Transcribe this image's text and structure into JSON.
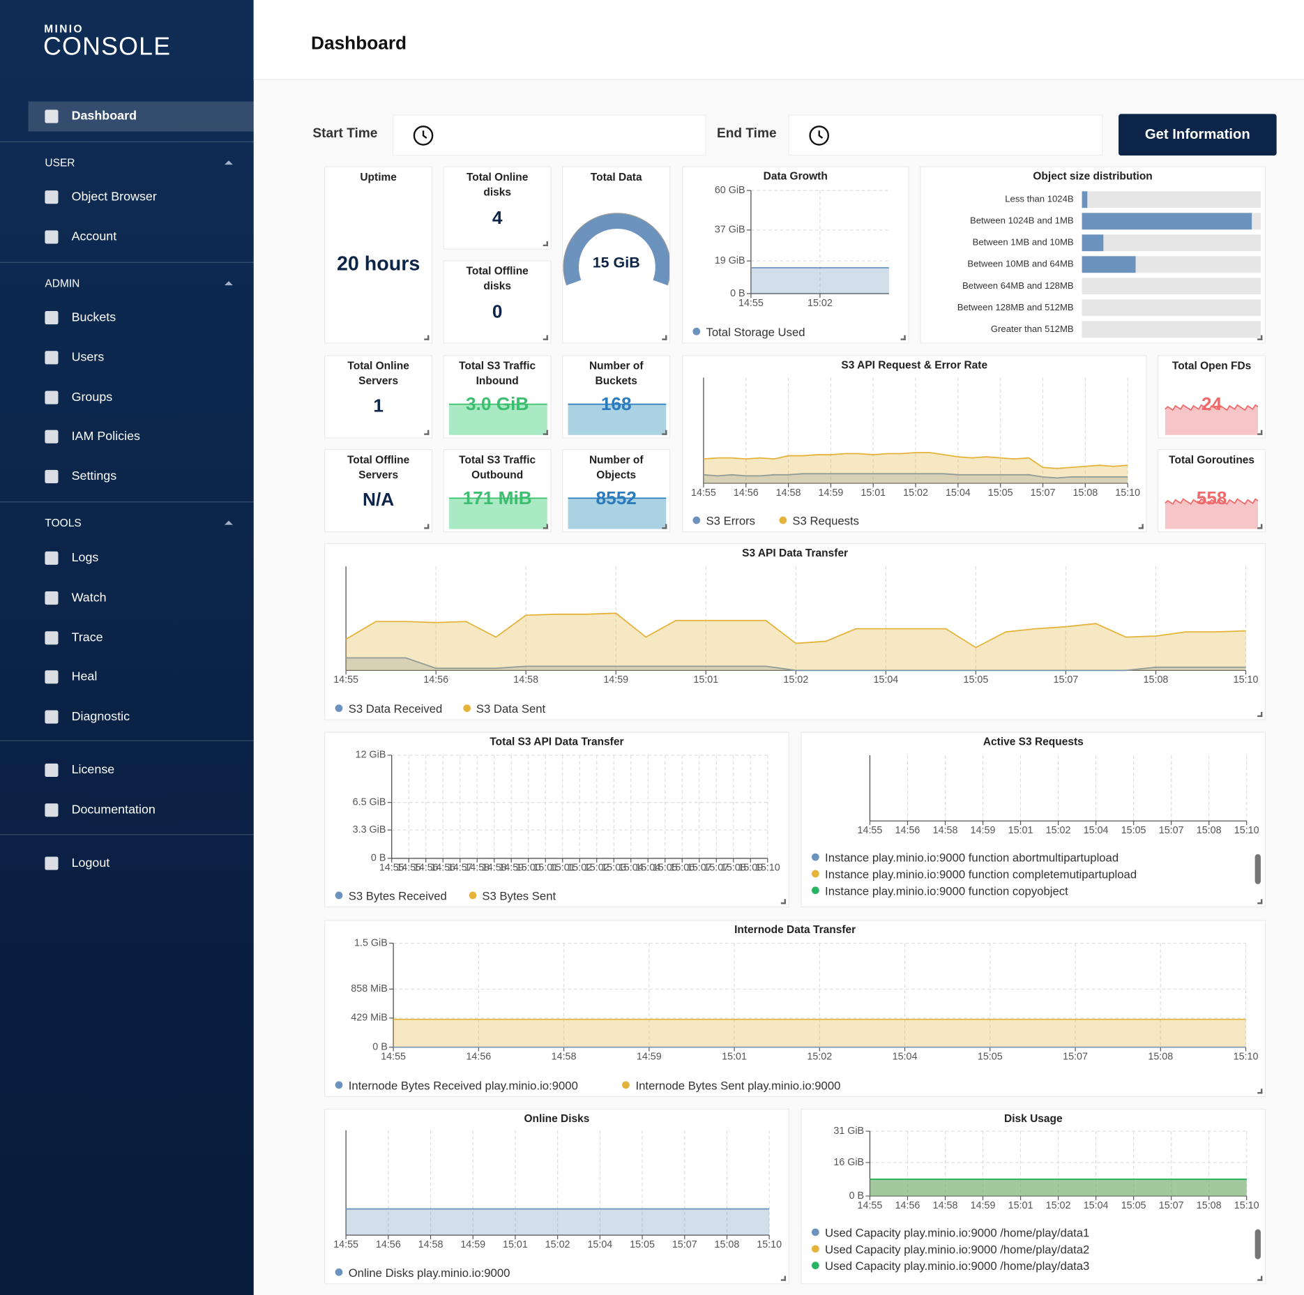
{
  "sidebar": {
    "logo_small": "MINIO",
    "logo": "CONSOLE",
    "active": "Dashboard",
    "sections": [
      {
        "title": "USER",
        "items": [
          "Object Browser",
          "Account"
        ]
      },
      {
        "title": "ADMIN",
        "items": [
          "Buckets",
          "Users",
          "Groups",
          "IAM Policies",
          "Settings"
        ]
      },
      {
        "title": "TOOLS",
        "items": [
          "Logs",
          "Watch",
          "Trace",
          "Heal",
          "Diagnostic"
        ]
      }
    ],
    "extra": [
      "License",
      "Documentation"
    ],
    "logout": "Logout"
  },
  "header": {
    "title": "Dashboard"
  },
  "filters": {
    "start": "Start Time",
    "end": "End Time",
    "button": "Get Information"
  },
  "stats": [
    {
      "title": "Uptime",
      "value": "20 hours"
    },
    {
      "title": "Total Online disks",
      "value": "4"
    },
    {
      "title": "Total Offline disks",
      "value": "0"
    },
    {
      "title": "Total Data",
      "value": "15 GiB"
    },
    {
      "title": "Total Online Servers",
      "value": "1"
    },
    {
      "title": "Total Offline Servers",
      "value": "N/A"
    },
    {
      "title": "Total S3 Traffic Inbound",
      "value": "3.0 GiB"
    },
    {
      "title": "Total S3 Traffic Outbound",
      "value": "171 MiB"
    },
    {
      "title": "Number of Buckets",
      "value": "168"
    },
    {
      "title": "Number of Objects",
      "value": "8552"
    },
    {
      "title": "Total Open FDs",
      "value": "24"
    },
    {
      "title": "Total Goroutines",
      "value": "558"
    }
  ],
  "charts": {
    "data_growth": {
      "type": "area",
      "title": "Data Growth",
      "categories": [
        "14:55",
        "15:02",
        null
      ],
      "ylim": [
        0,
        60
      ],
      "yticks": [
        {
          "value": 0,
          "label": "0 B"
        },
        {
          "value": 19,
          "label": "19 GiB"
        },
        {
          "value": 37,
          "label": "37 GiB"
        },
        {
          "value": 60,
          "label": "60 GiB"
        }
      ],
      "series": [
        {
          "name": "Total Storage Used",
          "color": "#6c93be",
          "values": [
            15,
            15,
            15
          ]
        }
      ]
    },
    "object_sizes": {
      "type": "hbar",
      "title": "Object size distribution",
      "categories": [
        "Less than 1024B",
        "Between 1024B and 1MB",
        "Between 1MB and 10MB",
        "Between 10MB and 64MB",
        "Between 64MB and 128MB",
        "Between 128MB and 512MB",
        "Greater than 512MB"
      ],
      "values": [
        3,
        95,
        12,
        30,
        0,
        0,
        0
      ],
      "xlim": [
        0,
        100
      ],
      "color": "#6c93be"
    },
    "s3_request_rate": {
      "type": "area",
      "title": "S3 API Request & Error Rate",
      "categories": [
        "14:55",
        null,
        null,
        "14:56",
        null,
        null,
        "14:58",
        null,
        null,
        "14:59",
        null,
        null,
        "15:01",
        null,
        null,
        "15:02",
        null,
        null,
        "15:04",
        null,
        null,
        "15:05",
        null,
        null,
        "15:07",
        null,
        null,
        "15:08",
        null,
        null,
        "15:10"
      ],
      "ylim": [
        0,
        100
      ],
      "series": [
        {
          "name": "S3 Errors",
          "color": "#6c93be",
          "values": [
            8,
            7,
            8,
            7,
            7,
            8,
            8,
            9,
            9,
            9,
            9,
            9,
            9,
            9,
            9,
            9,
            9,
            9,
            8,
            8,
            8,
            8,
            8,
            8,
            6,
            5,
            6,
            6,
            6,
            6,
            6
          ]
        },
        {
          "name": "S3 Requests",
          "color": "#e5b33a",
          "values": [
            23,
            24,
            24,
            23,
            24,
            23,
            26,
            26,
            27,
            27,
            28,
            28,
            27,
            28,
            28,
            29,
            29,
            27,
            25,
            24,
            25,
            24,
            23,
            24,
            15,
            14,
            15,
            16,
            17,
            16,
            17
          ]
        }
      ]
    },
    "s3_data_transfer": {
      "type": "area",
      "title": "S3 API Data Transfer",
      "categories": [
        "14:55",
        null,
        null,
        "14:56",
        null,
        null,
        "14:58",
        null,
        null,
        "14:59",
        null,
        null,
        "15:01",
        null,
        null,
        "15:02",
        null,
        null,
        "15:04",
        null,
        null,
        "15:05",
        null,
        null,
        "15:07",
        null,
        null,
        "15:08",
        null,
        null,
        "15:10"
      ],
      "ylim": [
        0,
        100
      ],
      "series": [
        {
          "name": "S3 Data Received",
          "color": "#6c93be",
          "values": [
            12,
            12,
            12,
            2,
            2,
            2,
            4,
            4,
            4,
            4,
            4,
            4,
            4,
            4,
            4,
            0,
            0,
            0,
            0,
            0,
            0,
            0,
            0,
            0,
            0,
            0,
            0,
            3,
            3,
            3,
            3
          ]
        },
        {
          "name": "S3 Data Sent",
          "color": "#e5b33a",
          "values": [
            30,
            47,
            47,
            46,
            47,
            32,
            53,
            54,
            54,
            55,
            32,
            48,
            48,
            48,
            48,
            26,
            28,
            40,
            40,
            40,
            40,
            22,
            37,
            40,
            42,
            45,
            32,
            33,
            37,
            37,
            38
          ]
        }
      ]
    },
    "total_s3_transfer": {
      "type": "area",
      "title": "Total S3 API Data Transfer",
      "categories": [
        "14:55",
        "14:55",
        "14:56",
        "14:56",
        "14:57",
        "14:58",
        "14:58",
        "14:59",
        "15:00",
        "15:01",
        "15:01",
        "15:02",
        "15:02",
        "15:03",
        "15:04",
        "15:04",
        "15:05",
        "15:06",
        "15:07",
        "15:07",
        "15:08",
        "15:09",
        "15:10"
      ],
      "ylim": [
        0,
        12
      ],
      "yticks": [
        {
          "value": 0,
          "label": "0 B"
        },
        {
          "value": 3.3,
          "label": "3.3 GiB"
        },
        {
          "value": 6.5,
          "label": "6.5 GiB"
        },
        {
          "value": 12,
          "label": "12 GiB"
        }
      ],
      "series": [
        {
          "name": "S3 Bytes Received",
          "color": "#6c93be"
        },
        {
          "name": "S3 Bytes Sent",
          "color": "#e5b33a"
        }
      ]
    },
    "active_requests": {
      "type": "area",
      "title": "Active S3 Requests",
      "legend": "column",
      "categories": [
        "14:55",
        "14:56",
        "14:58",
        "14:59",
        "15:01",
        "15:02",
        "15:04",
        "15:05",
        "15:07",
        "15:08",
        "15:10"
      ],
      "ylim": [
        0,
        100
      ],
      "series": [
        {
          "name": "Instance play.minio.io:9000 function abortmultipartupload",
          "color": "#6c93be"
        },
        {
          "name": "Instance play.minio.io:9000 function completemutipartupload",
          "color": "#e5b33a"
        },
        {
          "name": "Instance play.minio.io:9000 function copyobject",
          "color": "#28b463"
        }
      ]
    },
    "internode": {
      "type": "area",
      "title": "Internode Data Transfer",
      "categories": [
        "14:55",
        "14:56",
        "14:58",
        "14:59",
        "15:01",
        "15:02",
        "15:04",
        "15:05",
        "15:07",
        "15:08",
        "15:10"
      ],
      "ylim": [
        0,
        1536
      ],
      "yticks": [
        {
          "value": 0,
          "label": "0 B"
        },
        {
          "value": 429,
          "label": "429 MiB"
        },
        {
          "value": 858,
          "label": "858 MiB"
        },
        {
          "value": 1536,
          "label": "1.5 GiB"
        }
      ],
      "series": [
        {
          "name": "Internode Bytes Received play.minio.io:9000",
          "color": "#6c93be",
          "values": [
            0,
            0,
            0,
            0,
            0,
            0,
            0,
            0,
            0,
            0,
            0
          ]
        },
        {
          "name": "Internode Bytes Sent play.minio.io:9000",
          "color": "#e5b33a",
          "values": [
            410,
            410,
            410,
            410,
            410,
            410,
            410,
            410,
            410,
            410,
            410
          ]
        }
      ]
    },
    "online_disks": {
      "type": "area",
      "title": "Online Disks",
      "categories": [
        "14:55",
        "14:56",
        "14:58",
        "14:59",
        "15:01",
        "15:02",
        "15:04",
        "15:05",
        "15:07",
        "15:08",
        "15:10"
      ],
      "ylim": [
        0,
        4
      ],
      "series": [
        {
          "name": "Online Disks play.minio.io:9000",
          "color": "#6c93be",
          "values": [
            1,
            1,
            1,
            1,
            1,
            1,
            1,
            1,
            1,
            1,
            1
          ]
        }
      ]
    },
    "disk_usage": {
      "type": "area",
      "title": "Disk Usage",
      "legend": "column",
      "categories": [
        "14:55",
        "14:56",
        "14:58",
        "14:59",
        "15:01",
        "15:02",
        "15:04",
        "15:05",
        "15:07",
        "15:08",
        "15:10"
      ],
      "ylim": [
        0,
        31
      ],
      "yticks": [
        {
          "value": 0,
          "label": "0 B"
        },
        {
          "value": 16,
          "label": "16 GiB"
        },
        {
          "value": 31,
          "label": "31 GiB"
        }
      ],
      "series": [
        {
          "name": "Used Capacity play.minio.io:9000 /home/play/data1",
          "color": "#6c93be",
          "values": [
            8,
            8,
            8,
            8,
            8,
            8,
            8,
            8,
            8,
            8,
            8
          ]
        },
        {
          "name": "Used Capacity play.minio.io:9000 /home/play/data2",
          "color": "#e5b33a",
          "values": [
            8,
            8,
            8,
            8,
            8,
            8,
            8,
            8,
            8,
            8,
            8
          ]
        },
        {
          "name": "Used Capacity play.minio.io:9000 /home/play/data3",
          "color": "#28b463",
          "values": [
            8,
            8,
            8,
            8,
            8,
            8,
            8,
            8,
            8,
            8,
            8
          ]
        }
      ]
    }
  }
}
